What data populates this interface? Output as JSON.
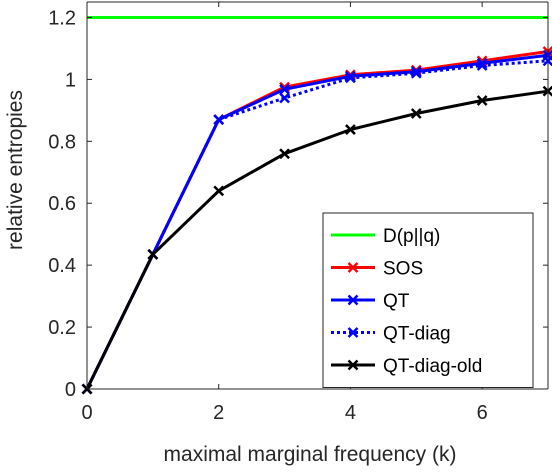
{
  "chart_data": {
    "type": "line",
    "title": "",
    "xlabel": "maximal marginal frequency (k)",
    "ylabel": "relative entropies",
    "xlim": [
      0,
      7
    ],
    "ylim": [
      0,
      1.25
    ],
    "xticks": [
      0,
      2,
      4,
      6
    ],
    "xtick_labels": [
      "0",
      "2",
      "4",
      "6"
    ],
    "yticks": [
      0,
      0.2,
      0.4,
      0.6,
      0.8,
      1,
      1.2
    ],
    "ytick_labels": [
      "0",
      "0.2",
      "0.4",
      "0.6",
      "0.8",
      "1",
      "1.2"
    ],
    "grid": false,
    "legend_position": "bottom-right",
    "x": [
      0,
      1,
      2,
      3,
      4,
      5,
      6,
      7
    ],
    "series": [
      {
        "name": "D(p||q)",
        "color": "#00ff00",
        "style": "solid",
        "marker": "none",
        "x": [
          0,
          7
        ],
        "values": [
          1.2,
          1.2
        ]
      },
      {
        "name": "SOS",
        "color": "#ff0000",
        "style": "solid",
        "marker": "x",
        "values": [
          0,
          0.435,
          0.87,
          0.975,
          1.015,
          1.03,
          1.06,
          1.09
        ]
      },
      {
        "name": "QT",
        "color": "#0000ff",
        "style": "solid",
        "marker": "x",
        "values": [
          0,
          0.435,
          0.87,
          0.968,
          1.01,
          1.025,
          1.052,
          1.078
        ]
      },
      {
        "name": "QT-diag",
        "color": "#0000ff",
        "style": "dotted",
        "marker": "x",
        "values": [
          0,
          0.435,
          0.87,
          0.94,
          1.005,
          1.02,
          1.045,
          1.06
        ]
      },
      {
        "name": "QT-diag-old",
        "color": "#000000",
        "style": "solid",
        "marker": "x",
        "values": [
          0,
          0.435,
          0.64,
          0.76,
          0.838,
          0.89,
          0.932,
          0.962
        ]
      }
    ]
  }
}
